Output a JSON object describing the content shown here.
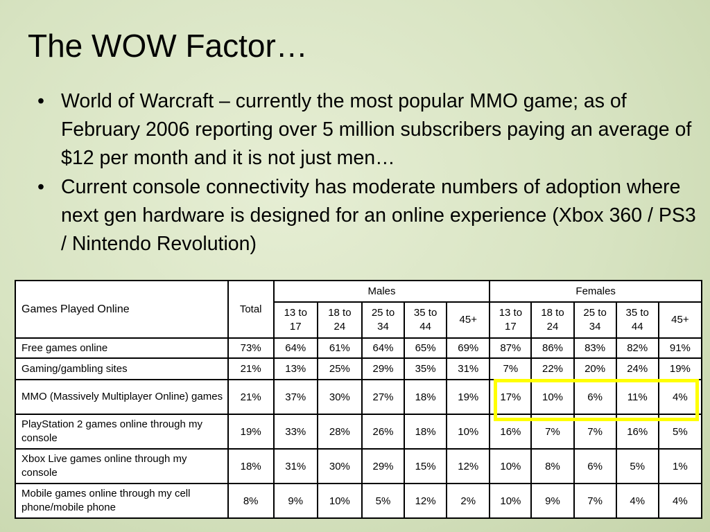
{
  "slide": {
    "title": "The WOW Factor…",
    "bullets": [
      "World of Warcraft – currently the most popular MMO game; as of February 2006 reporting over 5 million subscribers paying an average of $12 per month and it is not just men…",
      "Current console connectivity has moderate numbers of adoption where next gen hardware is designed for an online experience (Xbox 360 / PS3 / Nintendo Revolution)"
    ]
  },
  "table": {
    "corner_label": "Games Played Online",
    "total_label": "Total",
    "males_label": "Males",
    "females_label": "Females",
    "age_groups": [
      "13 to 17",
      "18 to 24",
      "25 to 34",
      "35 to 44",
      "45+"
    ],
    "rows": [
      {
        "label": "Free games online",
        "total": "73%",
        "males": [
          "64%",
          "61%",
          "64%",
          "65%",
          "69%"
        ],
        "females": [
          "87%",
          "86%",
          "83%",
          "82%",
          "91%"
        ]
      },
      {
        "label": "Gaming/gambling sites",
        "total": "21%",
        "males": [
          "13%",
          "25%",
          "29%",
          "35%",
          "31%"
        ],
        "females": [
          "7%",
          "22%",
          "20%",
          "24%",
          "19%"
        ]
      },
      {
        "label": "MMO (Massively Multiplayer Online) games",
        "total": "21%",
        "males": [
          "37%",
          "30%",
          "27%",
          "18%",
          "19%"
        ],
        "females": [
          "17%",
          "10%",
          "6%",
          "11%",
          "4%"
        ]
      },
      {
        "label": "PlayStation 2 games online through my console",
        "total": "19%",
        "males": [
          "33%",
          "28%",
          "26%",
          "18%",
          "10%"
        ],
        "females": [
          "16%",
          "7%",
          "7%",
          "16%",
          "5%"
        ]
      },
      {
        "label": "Xbox Live games online through my console",
        "total": "18%",
        "males": [
          "31%",
          "30%",
          "29%",
          "15%",
          "12%"
        ],
        "females": [
          "10%",
          "8%",
          "6%",
          "5%",
          "1%"
        ]
      },
      {
        "label": "Mobile games online through my cell phone/mobile phone",
        "total": "8%",
        "males": [
          "9%",
          "10%",
          "5%",
          "12%",
          "2%"
        ],
        "females": [
          "10%",
          "9%",
          "7%",
          "4%",
          "4%"
        ]
      }
    ],
    "highlight_color": "#ffff00"
  }
}
